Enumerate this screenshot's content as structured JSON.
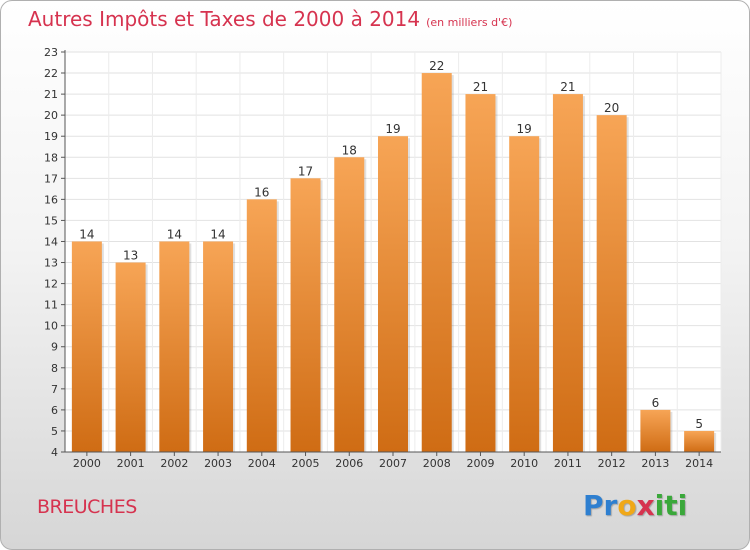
{
  "header": {
    "title": "Autres Impôts et Taxes de 2000 à 2014",
    "unit": "(en milliers d'€)"
  },
  "footer": {
    "place": "BREUCHES",
    "logo_letters": [
      {
        "char": "P",
        "color": "#2e7fd0"
      },
      {
        "char": "r",
        "color": "#2e7fd0"
      },
      {
        "char": "o",
        "color": "#f0a818"
      },
      {
        "char": "x",
        "color": "#d6334f"
      },
      {
        "char": "i",
        "color": "#3aa83a"
      },
      {
        "char": "t",
        "color": "#3aa83a"
      },
      {
        "char": "i",
        "color": "#3aa83a"
      }
    ]
  },
  "chart_data": {
    "type": "bar",
    "title": "Autres Impôts et Taxes de 2000 à 2014",
    "subtitle": "(en milliers d'€)",
    "categories": [
      "2000",
      "2001",
      "2002",
      "2003",
      "2004",
      "2005",
      "2006",
      "2007",
      "2008",
      "2009",
      "2010",
      "2011",
      "2012",
      "2013",
      "2014"
    ],
    "values": [
      14,
      13,
      14,
      14,
      16,
      17,
      18,
      19,
      22,
      21,
      19,
      21,
      20,
      6,
      5
    ],
    "ylim": [
      4,
      23
    ],
    "yticks": [
      4,
      5,
      6,
      7,
      8,
      9,
      10,
      11,
      12,
      13,
      14,
      15,
      16,
      17,
      18,
      19,
      20,
      21,
      22,
      23
    ],
    "grid": true,
    "bar_color_top": "#f7a556",
    "bar_color_bottom": "#cf6c14"
  }
}
